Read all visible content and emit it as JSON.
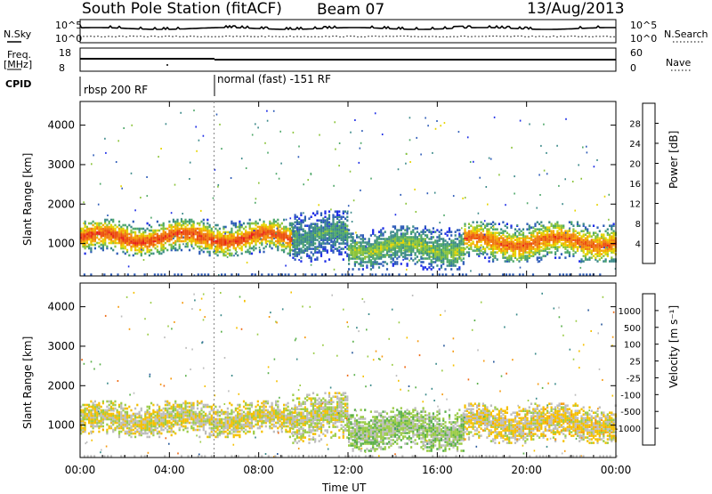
{
  "header": {
    "station": "South Pole Station (fitACF)",
    "beam": "Beam 07",
    "date": "13/Aug/2013"
  },
  "summary_panel": {
    "nsky_label": "N.Sky",
    "nsky_ticks": [
      "10^5",
      "10^0"
    ],
    "nsearch_label": "N.Search",
    "nsearch_ticks": [
      "10^5",
      "10^0"
    ],
    "freq_label": "Freq.",
    "freq_unit": "[MHz]",
    "freq_ticks": [
      "18",
      "8"
    ],
    "nave_label": "Nave",
    "nave_ticks": [
      "60",
      "0"
    ],
    "cpid_label": "CPID",
    "cpid_segments": [
      "rbsp 200 RF",
      "normal (fast) -151 RF"
    ]
  },
  "colors": {
    "power_scale": [
      "#1e2ee6",
      "#2f5db8",
      "#3d8a8a",
      "#4fa86a",
      "#8cc43c",
      "#e6d400",
      "#f5a600",
      "#f07a12",
      "#ec5010",
      "#e8201a"
    ],
    "velocity_scale": [
      "#1f3aa8",
      "#2a5a9c",
      "#3a8a8a",
      "#5ab04a",
      "#9ccc48",
      "#bdbdbd",
      "#f5c000",
      "#f59a10",
      "#ef6a14",
      "#e82a18"
    ]
  },
  "chart_data": [
    {
      "type": "heatmap",
      "name": "power",
      "ylabel": "Slant Range [km]",
      "xlabel": "",
      "x_ticks": [
        "00:00",
        "04:00",
        "08:00",
        "12:00",
        "16:00",
        "20:00",
        "00:00"
      ],
      "y_ticks": [
        "1000",
        "2000",
        "3000",
        "4000"
      ],
      "ylim": [
        180,
        4600
      ],
      "xlim_hours": [
        0,
        24
      ],
      "colorbar_label": "Power [dB]",
      "colorbar_ticks": [
        "28",
        "24",
        "20",
        "16",
        "12",
        "8",
        "4"
      ],
      "colorbar_range": [
        0,
        30
      ],
      "echo_bands": [
        {
          "start_h": 0.0,
          "end_h": 9.5,
          "center_km": 1150,
          "half_width_km": 450,
          "peak_db": 27
        },
        {
          "start_h": 9.5,
          "end_h": 12.0,
          "center_km": 1200,
          "half_width_km": 650,
          "peak_db": 10
        },
        {
          "start_h": 12.0,
          "end_h": 17.2,
          "center_km": 900,
          "half_width_km": 550,
          "peak_db": 14
        },
        {
          "start_h": 17.2,
          "end_h": 24.0,
          "center_km": 1050,
          "half_width_km": 500,
          "peak_db": 25
        }
      ]
    },
    {
      "type": "heatmap",
      "name": "velocity",
      "ylabel": "Slant Range [km]",
      "xlabel": "Time UT",
      "x_ticks": [
        "00:00",
        "04:00",
        "08:00",
        "12:00",
        "16:00",
        "20:00",
        "00:00"
      ],
      "y_ticks": [
        "1000",
        "2000",
        "3000",
        "4000"
      ],
      "ylim": [
        180,
        4600
      ],
      "xlim_hours": [
        0,
        24
      ],
      "colorbar_label": "Velocity [m s⁻¹]",
      "colorbar_ticks": [
        "1000",
        "500",
        "100",
        "25",
        "-25",
        "-100",
        "-500",
        "-1000"
      ],
      "colorbar_range": [
        -1000,
        1000
      ],
      "echo_bands": [
        {
          "start_h": 0.0,
          "end_h": 9.5,
          "center_km": 1150,
          "half_width_km": 450,
          "velocity": -120
        },
        {
          "start_h": 9.5,
          "end_h": 12.0,
          "center_km": 1200,
          "half_width_km": 650,
          "velocity": -60
        },
        {
          "start_h": 12.0,
          "end_h": 17.2,
          "center_km": 900,
          "half_width_km": 550,
          "velocity": 80
        },
        {
          "start_h": 17.2,
          "end_h": 24.0,
          "center_km": 1050,
          "half_width_km": 500,
          "velocity": -180
        }
      ]
    }
  ]
}
